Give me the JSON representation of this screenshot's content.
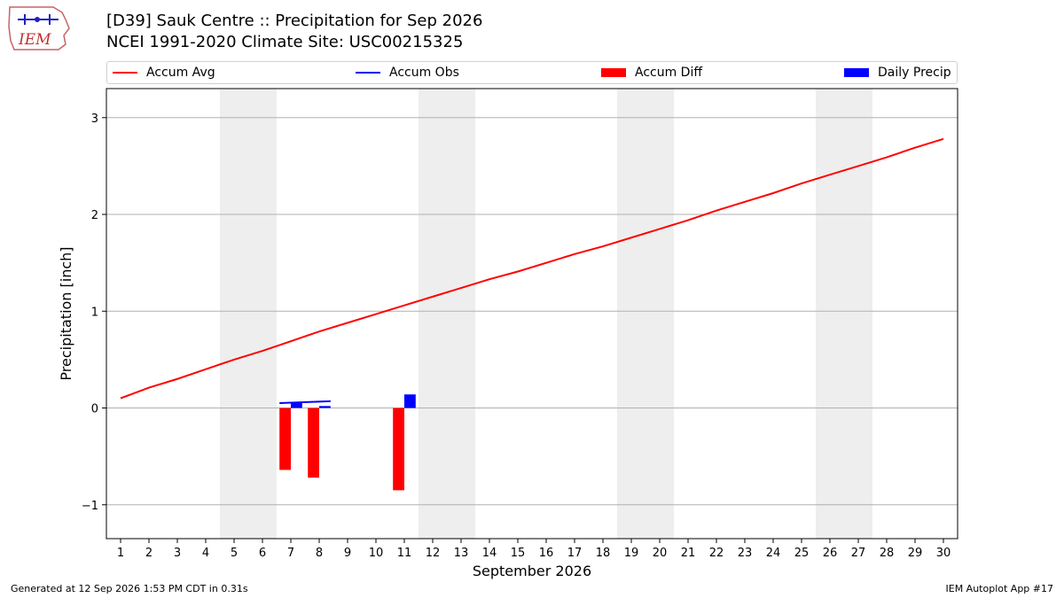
{
  "header": {
    "title_line1": "[D39] Sauk Centre :: Precipitation for Sep 2026",
    "title_line2": "NCEI 1991-2020 Climate Site: USC00215325",
    "logo_text": "IEM"
  },
  "legend": {
    "placement": "top, above plot, single row",
    "items": [
      {
        "label": "Accum Avg",
        "type": "line",
        "color": "#ff0000"
      },
      {
        "label": "Accum Obs",
        "type": "line",
        "color": "#0000ff"
      },
      {
        "label": "Accum Diff",
        "type": "box",
        "color": "#ff0000"
      },
      {
        "label": "Daily Precip",
        "type": "box",
        "color": "#0000ff"
      }
    ]
  },
  "footer": {
    "left": "Generated at 12 Sep 2026 1:53 PM CDT in 0.31s",
    "right": "IEM Autoplot App #17"
  },
  "colors": {
    "avg": "#ff0000",
    "obs": "#0000ff",
    "diff": "#ff0000",
    "daily": "#0000ff",
    "weekend": "#eeeeee",
    "grid": "#b0b0b0"
  },
  "chart_data": {
    "type": "bar",
    "xlabel": "September 2026",
    "ylabel": "Precipitation [inch]",
    "xlim": [
      0.5,
      30.5
    ],
    "ylim": [
      -1.35,
      3.3
    ],
    "yticks": [
      -1,
      0,
      1,
      2,
      3
    ],
    "ytick_labels": [
      "−1",
      "0",
      "1",
      "2",
      "3"
    ],
    "grid": "horizontal",
    "days": [
      1,
      2,
      3,
      4,
      5,
      6,
      7,
      8,
      9,
      10,
      11,
      12,
      13,
      14,
      15,
      16,
      17,
      18,
      19,
      20,
      21,
      22,
      23,
      24,
      25,
      26,
      27,
      28,
      29,
      30
    ],
    "weekend_spans": [
      [
        4.5,
        6.5
      ],
      [
        11.5,
        13.5
      ],
      [
        18.5,
        20.5
      ],
      [
        25.5,
        27.5
      ]
    ],
    "series": [
      {
        "name": "Accum Avg",
        "type": "line",
        "x": [
          1,
          2,
          3,
          4,
          5,
          6,
          7,
          8,
          9,
          10,
          11,
          12,
          13,
          14,
          15,
          16,
          17,
          18,
          19,
          20,
          21,
          22,
          23,
          24,
          25,
          26,
          27,
          28,
          29,
          30
        ],
        "values": [
          0.1,
          0.21,
          0.3,
          0.4,
          0.5,
          0.59,
          0.69,
          0.79,
          0.88,
          0.97,
          1.06,
          1.15,
          1.24,
          1.33,
          1.41,
          1.5,
          1.59,
          1.67,
          1.76,
          1.85,
          1.94,
          2.04,
          2.13,
          2.22,
          2.32,
          2.41,
          2.5,
          2.59,
          2.69,
          2.78
        ]
      },
      {
        "name": "Accum Obs",
        "type": "line",
        "x": [
          7,
          8
        ],
        "values": [
          0.05,
          0.07
        ]
      },
      {
        "name": "Accum Diff",
        "type": "bar",
        "offset": "left",
        "x": [
          7,
          8,
          11
        ],
        "values": [
          -0.64,
          -0.72,
          -0.85
        ]
      },
      {
        "name": "Daily Precip",
        "type": "bar",
        "offset": "right",
        "x": [
          7,
          8,
          11
        ],
        "values": [
          0.05,
          0.02,
          0.14
        ]
      }
    ]
  }
}
